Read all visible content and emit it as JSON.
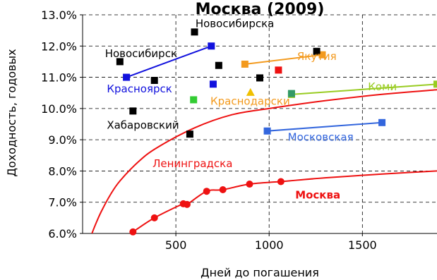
{
  "chart_data": {
    "type": "scatter",
    "title": "Москва (2009)",
    "xlabel": "Дней до погашения",
    "ylabel": "Доходность, годовых",
    "xlim": [
      0,
      1900
    ],
    "ylim": [
      6.0,
      13.0
    ],
    "x_ticks": [
      500,
      1000,
      1500
    ],
    "x_tick_labels": [
      "500",
      "1000",
      "1500"
    ],
    "y_ticks": [
      6,
      7,
      8,
      9,
      10,
      11,
      12,
      13
    ],
    "y_tick_labels": [
      "6.0%",
      "7.0%",
      "8.0%",
      "9.0%",
      "10.0%",
      "11.0%",
      "12.0%",
      "13.0%"
    ],
    "grid": "dashed, major ticks",
    "colors": {
      "moscow": "#ee1111",
      "krasnoyarsk": "#1111dd",
      "yakutia": "#f39a1e",
      "komi": "#99cc22",
      "moskovskaya": "#3366dd",
      "krasnodar": "#f0c000",
      "leningrad_curve": "#ee1111",
      "black": "#000000",
      "green": "#33cc33",
      "teal": "#339966"
    },
    "series": [
      {
        "name": "Москва",
        "kind": "points-line",
        "color": "#ee1111",
        "x": [
          270,
          385,
          540,
          560,
          665,
          752,
          895,
          1063
        ],
        "y": [
          6.05,
          6.5,
          6.95,
          6.93,
          7.35,
          7.4,
          7.58,
          7.66
        ]
      },
      {
        "name": "Москва",
        "kind": "curve",
        "color": "#ee1111",
        "x": [
          1063,
          1300,
          1600,
          1900
        ],
        "y": [
          7.66,
          7.78,
          7.9,
          8.0
        ]
      },
      {
        "name": "Ленинградска",
        "kind": "curve",
        "color": "#ee1111",
        "x": [
          50,
          70,
          100,
          150,
          200,
          300,
          400,
          600,
          800,
          1000,
          1300,
          1600,
          1900
        ],
        "y": [
          6.0,
          6.3,
          6.7,
          7.25,
          7.68,
          8.3,
          8.75,
          9.38,
          9.8,
          10.0,
          10.25,
          10.45,
          10.6
        ]
      },
      {
        "name": "Красноярск",
        "kind": "points-line",
        "color": "#1111dd",
        "x": [
          235,
          690
        ],
        "y": [
          11.0,
          12.0
        ]
      },
      {
        "name": "Якутия",
        "kind": "points-line",
        "color": "#f39a1e",
        "x": [
          870,
          1285
        ],
        "y": [
          11.42,
          11.72
        ]
      },
      {
        "name": "Коми",
        "kind": "points-line",
        "color": "#99cc22",
        "x": [
          1120,
          1900
        ],
        "y": [
          10.45,
          10.78
        ]
      },
      {
        "name": "Московская",
        "kind": "points-line",
        "color": "#3366dd",
        "x": [
          990,
          1605
        ],
        "y": [
          9.28,
          9.55
        ]
      },
      {
        "name": "Краснодарски",
        "kind": "triangle",
        "color": "#f0c000",
        "x": [
          900
        ],
        "y": [
          10.52
        ]
      },
      {
        "name": "",
        "kind": "squares",
        "color": "#000000",
        "x": [
          200,
          385,
          270,
          575,
          600,
          730,
          950,
          1255
        ],
        "y": [
          11.5,
          10.9,
          9.92,
          9.18,
          12.45,
          11.38,
          10.98,
          11.83
        ]
      },
      {
        "name": "",
        "kind": "squares",
        "color": "#1111dd",
        "x": [
          700
        ],
        "y": [
          10.78
        ]
      },
      {
        "name": "",
        "kind": "squares",
        "color": "#33cc33",
        "x": [
          595
        ],
        "y": [
          10.28
        ]
      },
      {
        "name": "",
        "kind": "squares",
        "color": "#ee1111",
        "x": [
          1050
        ],
        "y": [
          11.23
        ]
      },
      {
        "name": "",
        "kind": "squares",
        "color": "#339966",
        "x": [
          1120
        ],
        "y": [
          10.48
        ]
      }
    ],
    "annotations": [
      {
        "text": "Новосибирска",
        "color": "#000000",
        "x": 605,
        "y": 12.6
      },
      {
        "text": "Новосибирск",
        "color": "#000000",
        "x": 120,
        "y": 11.65
      },
      {
        "text": "Красноярск",
        "color": "#1111dd",
        "x": 130,
        "y": 10.52
      },
      {
        "text": "Хабаровский",
        "color": "#000000",
        "x": 130,
        "y": 9.35
      },
      {
        "text": "Якутия",
        "color": "#f39a1e",
        "x": 1150,
        "y": 11.55
      },
      {
        "text": "Коми",
        "color": "#99cc22",
        "x": 1530,
        "y": 10.58
      },
      {
        "text": "Краснодарски",
        "color": "#f39a1e",
        "x": 685,
        "y": 10.12
      },
      {
        "text": "Московская",
        "color": "#3366dd",
        "x": 1100,
        "y": 8.97
      },
      {
        "text": "Ленинградска",
        "color": "#ee1111",
        "x": 375,
        "y": 8.12
      },
      {
        "text": "Москва",
        "color": "#ee1111",
        "x": 1140,
        "y": 7.12,
        "bold": true
      }
    ]
  }
}
